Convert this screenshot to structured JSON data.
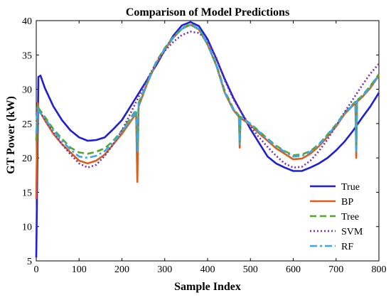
{
  "chart_data": {
    "type": "line",
    "title": "Comparison of Model Predictions",
    "xlabel": "Sample Index",
    "ylabel": "GT Power (kW)",
    "xlim": [
      0,
      800
    ],
    "ylim": [
      5,
      40
    ],
    "xticks": [
      0,
      100,
      200,
      300,
      400,
      500,
      600,
      700,
      800
    ],
    "yticks": [
      5,
      10,
      15,
      20,
      25,
      30,
      35,
      40
    ],
    "grid": false,
    "legend_position": "bottom-right",
    "series": [
      {
        "name": "True",
        "color": "#1f1fd6",
        "dash": "solid",
        "x": [
          0,
          5,
          10,
          20,
          40,
          60,
          80,
          100,
          120,
          140,
          160,
          180,
          200,
          220,
          240,
          260,
          280,
          300,
          320,
          340,
          360,
          380,
          400,
          420,
          440,
          460,
          480,
          500,
          520,
          540,
          560,
          580,
          600,
          620,
          640,
          660,
          680,
          700,
          720,
          740,
          760,
          780,
          800
        ],
        "y": [
          5.5,
          31.8,
          32.0,
          30.2,
          27.5,
          25.5,
          24.0,
          23.0,
          22.5,
          22.6,
          23.0,
          24.2,
          25.5,
          27.5,
          29.5,
          31.5,
          33.5,
          35.7,
          37.8,
          39.3,
          39.8,
          39.2,
          37.3,
          34.5,
          31.5,
          28.8,
          26.5,
          24.2,
          22.2,
          20.2,
          19.2,
          18.6,
          18.1,
          18.1,
          18.6,
          19.2,
          20.0,
          21.1,
          22.4,
          24.0,
          25.8,
          27.5,
          29.5
        ]
      },
      {
        "name": "BP",
        "color": "#d95f1e",
        "dash": "solid",
        "x": [
          0,
          3,
          6,
          20,
          40,
          60,
          80,
          100,
          120,
          140,
          160,
          180,
          200,
          220,
          233,
          236,
          239,
          260,
          280,
          300,
          320,
          340,
          360,
          380,
          400,
          420,
          440,
          460,
          473,
          475,
          477,
          500,
          520,
          540,
          560,
          580,
          600,
          620,
          640,
          660,
          680,
          700,
          720,
          745,
          747,
          749,
          760,
          780,
          800
        ],
        "y": [
          14.0,
          28.0,
          27.0,
          25.5,
          23.5,
          22.0,
          20.8,
          19.6,
          19.2,
          19.6,
          20.5,
          22.0,
          23.5,
          25.3,
          26.5,
          16.5,
          27.5,
          31.0,
          33.8,
          35.8,
          37.5,
          38.8,
          39.4,
          38.7,
          36.5,
          33.5,
          29.5,
          27.0,
          26.0,
          21.5,
          25.8,
          24.8,
          23.6,
          22.5,
          21.4,
          20.6,
          19.8,
          19.9,
          20.6,
          21.7,
          23.1,
          24.6,
          26.4,
          28.0,
          20.0,
          28.2,
          28.8,
          30.2,
          32.0
        ]
      },
      {
        "name": "Tree",
        "color": "#55a52a",
        "dash": "dash",
        "x": [
          0,
          3,
          6,
          20,
          40,
          60,
          80,
          100,
          120,
          140,
          160,
          180,
          200,
          220,
          233,
          236,
          239,
          260,
          280,
          300,
          320,
          340,
          360,
          380,
          400,
          420,
          440,
          460,
          473,
          475,
          477,
          500,
          520,
          540,
          560,
          580,
          600,
          620,
          640,
          660,
          680,
          700,
          720,
          745,
          747,
          749,
          760,
          780,
          800
        ],
        "y": [
          22.5,
          27.8,
          27.2,
          26.0,
          24.2,
          22.8,
          21.5,
          20.8,
          20.6,
          20.9,
          21.4,
          22.5,
          24.0,
          25.8,
          27.0,
          21.5,
          28.0,
          31.2,
          34.0,
          36.0,
          37.6,
          38.9,
          39.5,
          38.8,
          36.6,
          33.7,
          29.8,
          27.2,
          26.2,
          22.5,
          26.0,
          25.0,
          23.9,
          22.8,
          21.8,
          21.0,
          20.4,
          20.5,
          21.0,
          22.0,
          23.4,
          24.9,
          26.6,
          28.2,
          21.5,
          28.4,
          29.0,
          30.5,
          32.2
        ]
      },
      {
        "name": "SVM",
        "color": "#7b2fa8",
        "dash": "dot",
        "x": [
          0,
          5,
          20,
          40,
          60,
          80,
          100,
          120,
          140,
          160,
          180,
          200,
          220,
          240,
          260,
          280,
          300,
          320,
          340,
          360,
          380,
          400,
          420,
          440,
          460,
          480,
          500,
          520,
          540,
          560,
          580,
          600,
          620,
          640,
          660,
          680,
          700,
          720,
          740,
          760,
          780,
          800
        ],
        "y": [
          26.5,
          27.0,
          25.6,
          23.8,
          22.0,
          20.5,
          19.2,
          18.6,
          19.0,
          20.3,
          22.0,
          24.0,
          26.5,
          29.0,
          31.6,
          33.8,
          35.6,
          36.9,
          37.9,
          38.4,
          38.2,
          37.0,
          34.6,
          31.3,
          28.6,
          26.5,
          24.6,
          23.0,
          21.6,
          20.3,
          19.2,
          18.6,
          18.7,
          19.6,
          21.0,
          22.7,
          24.7,
          26.7,
          28.6,
          30.5,
          32.3,
          33.7
        ]
      },
      {
        "name": "RF",
        "color": "#3aa8e8",
        "dash": "dashdot",
        "x": [
          0,
          3,
          6,
          20,
          40,
          60,
          80,
          100,
          120,
          140,
          160,
          180,
          200,
          220,
          233,
          236,
          239,
          260,
          280,
          300,
          320,
          340,
          360,
          380,
          400,
          420,
          440,
          460,
          473,
          475,
          477,
          500,
          520,
          540,
          560,
          580,
          600,
          620,
          640,
          660,
          680,
          700,
          720,
          745,
          747,
          749,
          760,
          780,
          800
        ],
        "y": [
          23.5,
          27.5,
          26.8,
          25.8,
          24.0,
          22.5,
          21.2,
          20.2,
          20.0,
          20.3,
          21.0,
          22.3,
          23.8,
          25.6,
          26.8,
          21.0,
          27.8,
          31.1,
          33.9,
          35.9,
          37.5,
          38.8,
          39.4,
          38.8,
          36.6,
          33.6,
          29.6,
          27.1,
          26.1,
          22.0,
          26.0,
          24.9,
          23.8,
          22.7,
          21.7,
          20.9,
          20.2,
          20.3,
          20.9,
          21.9,
          23.3,
          24.8,
          26.5,
          28.1,
          21.0,
          28.3,
          28.9,
          30.4,
          32.1
        ]
      }
    ]
  }
}
